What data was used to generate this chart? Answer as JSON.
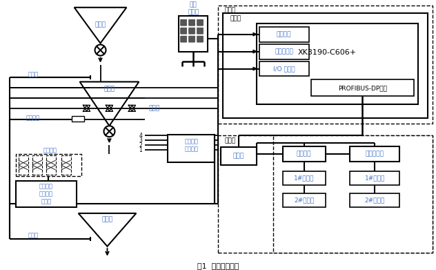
{
  "title": "图1  系统原理框图",
  "bg": "#ffffff",
  "blue": "#4472c4",
  "black": "#000000",
  "labels": {
    "storage": "储料斗",
    "weighing": "称量斗",
    "unloading": "卸料斗",
    "low_level": "低料位",
    "high_level": "高料位",
    "door_detect": "斗门检测",
    "solenoid": "电磁阀组",
    "io_box": "输人检测\n输出控制\n接线盒",
    "sensor": "传感器",
    "field_op": "现场\n操作柱",
    "main_sensor": "主秤传感\n器接线盒",
    "control_room": "控制室",
    "cabinet": "控制柜",
    "op_terminal": "操作端子",
    "sensor_iface": "传感器接口",
    "io_port": "I/O 量端口",
    "xk": "XK3190-C606+",
    "profibus": "PROFIBUS-DP接口",
    "main_ctrl_room": "主控室",
    "upper_pc": "上位机",
    "main_comp": "主计算机",
    "backup_comp": "备用计算机",
    "printer1": "1#打印机",
    "printer2": "2#打印机",
    "touch1": "1#触摸屏",
    "touch2": "2#触摸屏"
  }
}
